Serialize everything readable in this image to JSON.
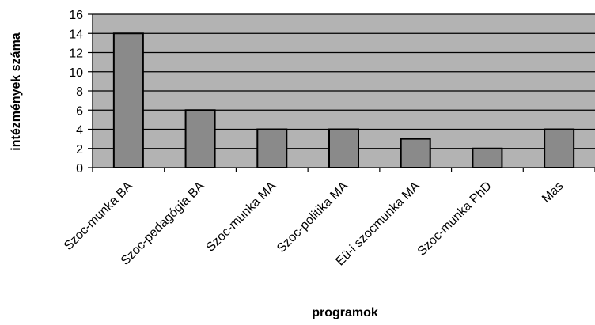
{
  "chart_data": {
    "type": "bar",
    "title": "",
    "xlabel": "programok",
    "ylabel": "intézmények száma",
    "categories": [
      "Szoc-munka BA",
      "Szoc-pedagógia BA",
      "Szoc-munka MA",
      "Szoc-politika MA",
      "Eü-i szocmunka MA",
      "Szoc-munka PhD",
      "Más"
    ],
    "values": [
      14,
      6,
      4,
      4,
      3,
      2,
      4
    ],
    "ylim": [
      0,
      16
    ],
    "yticks": [
      0,
      2,
      4,
      6,
      8,
      10,
      12,
      14,
      16
    ],
    "grid": true,
    "legend": "none",
    "colors": {
      "plot_background": "#b3b3b3",
      "bar_fill": "#8a8a8a",
      "bar_stroke": "#000000",
      "gridline": "#000000"
    }
  }
}
